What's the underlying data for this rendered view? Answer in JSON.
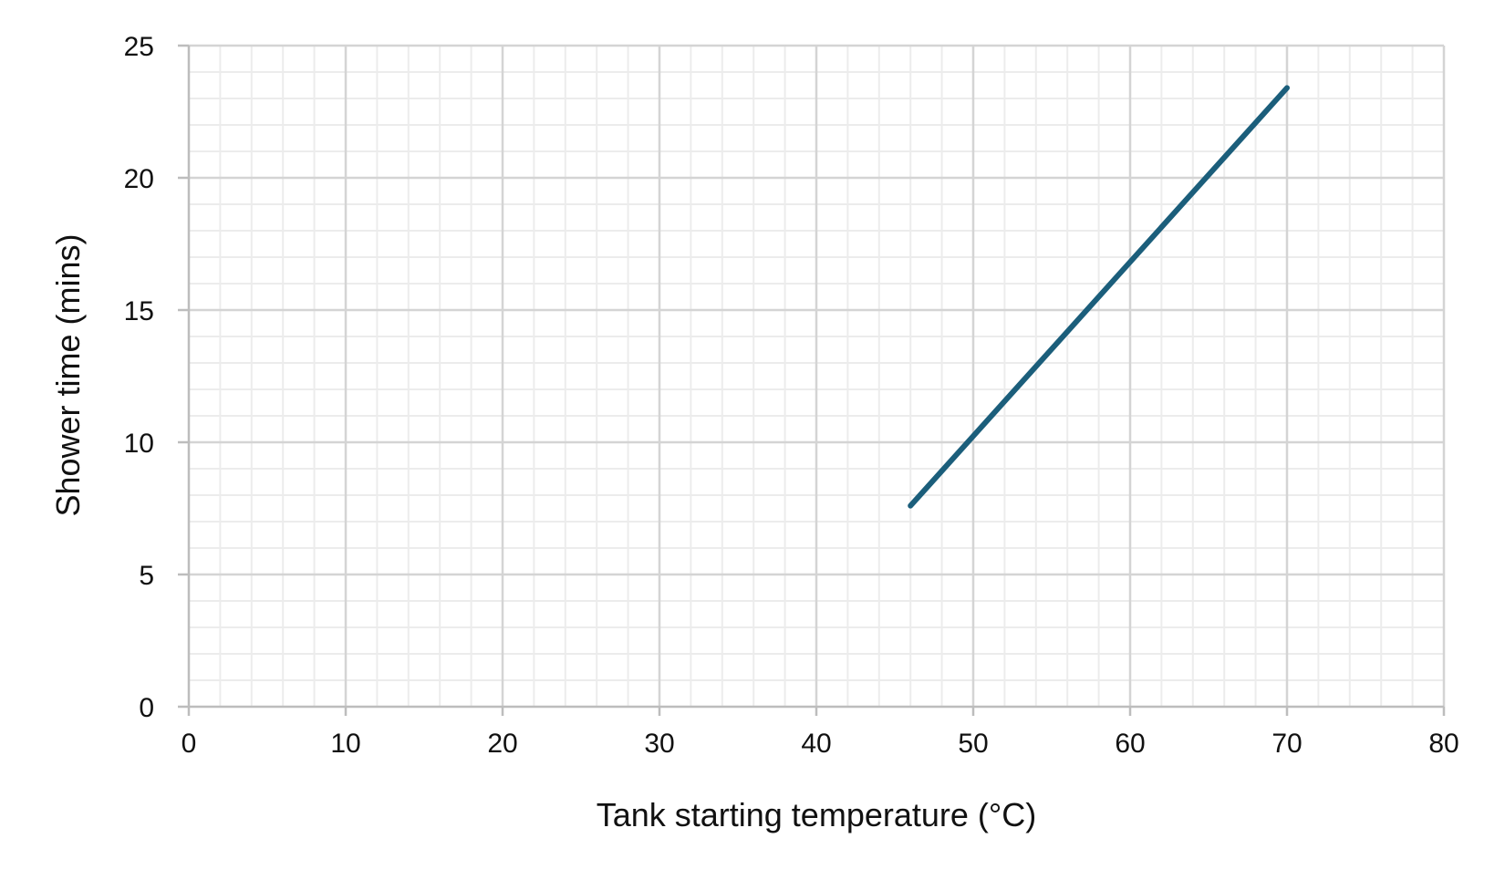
{
  "chart_data": {
    "type": "line",
    "title": "",
    "xlabel": "Tank starting temperature  (°C)",
    "ylabel": "Shower time (mins)",
    "xlim": [
      0,
      80
    ],
    "ylim": [
      0,
      25
    ],
    "x_ticks": [
      0,
      10,
      20,
      30,
      40,
      50,
      60,
      70,
      80
    ],
    "y_ticks": [
      0,
      5,
      10,
      15,
      20,
      25
    ],
    "x_minor_step": 2,
    "y_minor_step": 1,
    "grid": true,
    "legend": "none",
    "series": [
      {
        "color": "#1b5e7b",
        "x": [
          46,
          70
        ],
        "y": [
          7.6,
          23.4
        ]
      }
    ]
  }
}
